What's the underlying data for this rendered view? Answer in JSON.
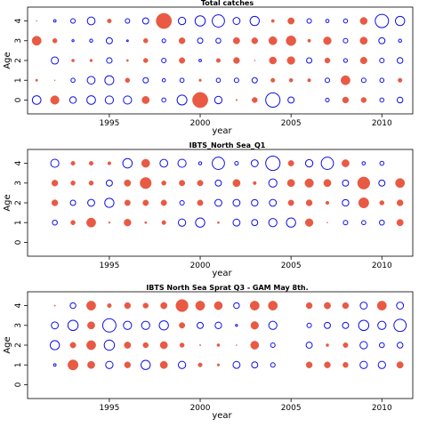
{
  "colors": {
    "positive": "#e85a44",
    "negative": "#1010e8"
  },
  "chart_data": [
    {
      "type": "scatter",
      "title": "Total catches",
      "xlabel": "year",
      "ylabel": "Age",
      "xlim": [
        1990.5,
        2011.7
      ],
      "ylim": [
        -0.7,
        4.7
      ],
      "xticks": [
        1995,
        2000,
        2005,
        2010
      ],
      "yticks": [
        0,
        1,
        2,
        3,
        4
      ],
      "grid": false,
      "encoding": "bubble: filled red = positive residual, open blue = negative residual, value = bubble radius in residual units",
      "points": [
        [
          1991,
          4,
          0.3
        ],
        [
          1992,
          4,
          -1.2
        ],
        [
          1993,
          4,
          -2.2
        ],
        [
          1994,
          4,
          -3.8
        ],
        [
          1995,
          4,
          2.0
        ],
        [
          1996,
          4,
          -2.2
        ],
        [
          1997,
          4,
          -3.0
        ],
        [
          1998,
          4,
          7.5
        ],
        [
          1999,
          4,
          -3.6
        ],
        [
          2000,
          4,
          -5.0
        ],
        [
          2001,
          4,
          -6.0
        ],
        [
          2002,
          4,
          -3.4
        ],
        [
          2003,
          4,
          -4.5
        ],
        [
          2004,
          4,
          1.5
        ],
        [
          2005,
          4,
          3.2
        ],
        [
          2006,
          4,
          -2.2
        ],
        [
          2007,
          4,
          -1.6
        ],
        [
          2008,
          4,
          -2.0
        ],
        [
          2009,
          4,
          3.5
        ],
        [
          2010,
          4,
          -6.5
        ],
        [
          2011,
          4,
          -4.5
        ],
        [
          1991,
          3,
          4.5
        ],
        [
          1992,
          3,
          2.2
        ],
        [
          1993,
          3,
          -1.0
        ],
        [
          1994,
          3,
          -1.5
        ],
        [
          1995,
          3,
          -3.0
        ],
        [
          1996,
          3,
          -0.8
        ],
        [
          1997,
          3,
          2.2
        ],
        [
          1998,
          3,
          -1.8
        ],
        [
          1999,
          3,
          3.0
        ],
        [
          2000,
          3,
          -2.6
        ],
        [
          2001,
          3,
          -2.4
        ],
        [
          2002,
          3,
          3.2
        ],
        [
          2003,
          3,
          3.0
        ],
        [
          2004,
          3,
          4.0
        ],
        [
          2005,
          3,
          4.8
        ],
        [
          2006,
          3,
          1.5
        ],
        [
          2007,
          3,
          3.8
        ],
        [
          2008,
          3,
          -2.2
        ],
        [
          2009,
          3,
          3.6
        ],
        [
          2010,
          3,
          -3.0
        ],
        [
          2011,
          3,
          -1.5
        ],
        [
          1992,
          2,
          -3.5
        ],
        [
          1993,
          2,
          1.4
        ],
        [
          1994,
          2,
          1.3
        ],
        [
          1995,
          2,
          -2.7
        ],
        [
          1996,
          2,
          1.0
        ],
        [
          1997,
          2,
          2.2
        ],
        [
          1998,
          2,
          -2.2
        ],
        [
          1999,
          2,
          2.8
        ],
        [
          2000,
          2,
          -1.2
        ],
        [
          2001,
          2,
          2.0
        ],
        [
          2002,
          2,
          3.0
        ],
        [
          2003,
          2,
          0.5
        ],
        [
          2004,
          2,
          3.5
        ],
        [
          2005,
          2,
          3.8
        ],
        [
          2006,
          2,
          -2.6
        ],
        [
          2007,
          2,
          2.6
        ],
        [
          2008,
          2,
          -1.8
        ],
        [
          2009,
          2,
          3.3
        ],
        [
          2010,
          2,
          -2.2
        ],
        [
          2011,
          2,
          -2.8
        ],
        [
          1991,
          1,
          1.1
        ],
        [
          1992,
          1,
          0.3
        ],
        [
          1993,
          1,
          -2.0
        ],
        [
          1994,
          1,
          -3.8
        ],
        [
          1995,
          1,
          -4.4
        ],
        [
          1996,
          1,
          2.2
        ],
        [
          1997,
          1,
          -2.6
        ],
        [
          1998,
          1,
          -1.6
        ],
        [
          1999,
          1,
          -2.0
        ],
        [
          2000,
          1,
          1.2
        ],
        [
          2001,
          1,
          -2.0
        ],
        [
          2002,
          1,
          -2.2
        ],
        [
          2003,
          1,
          -2.6
        ],
        [
          2004,
          1,
          2.0
        ],
        [
          2005,
          1,
          1.8
        ],
        [
          2006,
          1,
          1.6
        ],
        [
          2007,
          1,
          -2.2
        ],
        [
          2008,
          1,
          4.5
        ],
        [
          2009,
          1,
          -2.2
        ],
        [
          2010,
          1,
          -2.0
        ],
        [
          2011,
          1,
          2.0
        ],
        [
          1991,
          0,
          -4.2
        ],
        [
          1992,
          0,
          4.2
        ],
        [
          1993,
          0,
          -3.2
        ],
        [
          1994,
          0,
          -4.2
        ],
        [
          1995,
          0,
          -4.0
        ],
        [
          1996,
          0,
          -4.0
        ],
        [
          1997,
          0,
          3.6
        ],
        [
          1998,
          0,
          -2.0
        ],
        [
          1999,
          0,
          -4.8
        ],
        [
          2000,
          0,
          7.5
        ],
        [
          2001,
          0,
          -3.6
        ],
        [
          2002,
          0,
          0.7
        ],
        [
          2003,
          0,
          2.6
        ],
        [
          2004,
          0,
          -7.0
        ],
        [
          2005,
          0,
          -3.0
        ],
        [
          2007,
          0,
          -1.8
        ],
        [
          2008,
          0,
          3.0
        ],
        [
          2009,
          0,
          2.6
        ],
        [
          2010,
          0,
          -2.0
        ],
        [
          2011,
          0,
          -2.8
        ]
      ]
    },
    {
      "type": "scatter",
      "title": "IBTS_North Sea_Q1",
      "xlabel": "year",
      "ylabel": "Age",
      "xlim": [
        1990.5,
        2011.7
      ],
      "ylim": [
        -0.7,
        4.7
      ],
      "xticks": [
        1995,
        2000,
        2005,
        2010
      ],
      "yticks": [
        0,
        1,
        2,
        3,
        4
      ],
      "grid": false,
      "encoding": "bubble: filled red = positive residual, open blue = negative residual, value = bubble radius in residual units",
      "points": [
        [
          1992,
          4,
          -4.0
        ],
        [
          1993,
          4,
          2.0
        ],
        [
          1994,
          4,
          2.0
        ],
        [
          1995,
          4,
          1.6
        ],
        [
          1996,
          4,
          -4.6
        ],
        [
          1997,
          4,
          4.0
        ],
        [
          1998,
          4,
          -3.8
        ],
        [
          1999,
          4,
          -4.0
        ],
        [
          2000,
          4,
          -1.5
        ],
        [
          2001,
          4,
          -6.0
        ],
        [
          2002,
          4,
          -1.8
        ],
        [
          2003,
          4,
          -3.4
        ],
        [
          2004,
          4,
          -7.0
        ],
        [
          2005,
          4,
          2.8
        ],
        [
          2006,
          4,
          -3.6
        ],
        [
          2007,
          4,
          -6.0
        ],
        [
          2008,
          4,
          3.6
        ],
        [
          2009,
          4,
          -1.6
        ],
        [
          2010,
          4,
          -2.0
        ],
        [
          1992,
          3,
          3.0
        ],
        [
          1993,
          3,
          2.2
        ],
        [
          1994,
          3,
          2.2
        ],
        [
          1995,
          3,
          -3.0
        ],
        [
          1996,
          3,
          3.2
        ],
        [
          1997,
          3,
          5.5
        ],
        [
          1998,
          3,
          2.2
        ],
        [
          1999,
          3,
          2.8
        ],
        [
          2000,
          3,
          2.8
        ],
        [
          2001,
          3,
          -3.0
        ],
        [
          2002,
          3,
          3.6
        ],
        [
          2003,
          3,
          1.6
        ],
        [
          2004,
          3,
          -4.0
        ],
        [
          2005,
          3,
          3.6
        ],
        [
          2006,
          3,
          4.2
        ],
        [
          2007,
          3,
          3.6
        ],
        [
          2008,
          3,
          -3.0
        ],
        [
          2009,
          3,
          6.0
        ],
        [
          2010,
          3,
          -3.0
        ],
        [
          2011,
          3,
          4.5
        ],
        [
          1992,
          2,
          3.0
        ],
        [
          1993,
          2,
          -2.6
        ],
        [
          1994,
          2,
          -3.4
        ],
        [
          1995,
          2,
          -4.5
        ],
        [
          1996,
          2,
          2.8
        ],
        [
          1997,
          2,
          2.8
        ],
        [
          1998,
          2,
          2.8
        ],
        [
          1999,
          2,
          -2.2
        ],
        [
          2000,
          2,
          2.8
        ],
        [
          2001,
          2,
          -3.4
        ],
        [
          2002,
          2,
          -3.4
        ],
        [
          2003,
          2,
          -3.2
        ],
        [
          2004,
          2,
          -3.4
        ],
        [
          2005,
          2,
          2.8
        ],
        [
          2006,
          2,
          3.0
        ],
        [
          2007,
          2,
          1.6
        ],
        [
          2008,
          2,
          -3.2
        ],
        [
          2009,
          2,
          5.0
        ],
        [
          2010,
          2,
          2.2
        ],
        [
          2011,
          2,
          3.0
        ],
        [
          1992,
          1,
          -2.4
        ],
        [
          1993,
          1,
          2.2
        ],
        [
          1994,
          1,
          4.5
        ],
        [
          1995,
          1,
          0.8
        ],
        [
          1996,
          1,
          3.4
        ],
        [
          1997,
          1,
          1.0
        ],
        [
          1998,
          1,
          2.0
        ],
        [
          1999,
          1,
          -3.6
        ],
        [
          2000,
          1,
          -4.5
        ],
        [
          2001,
          1,
          1.0
        ],
        [
          2002,
          1,
          -3.4
        ],
        [
          2003,
          1,
          -3.0
        ],
        [
          2004,
          1,
          -4.0
        ],
        [
          2005,
          1,
          -4.5
        ],
        [
          2006,
          1,
          3.8
        ],
        [
          2007,
          1,
          0.5
        ],
        [
          2008,
          1,
          -2.2
        ],
        [
          2009,
          1,
          -2.0
        ],
        [
          2010,
          1,
          -2.4
        ],
        [
          2011,
          1,
          3.2
        ]
      ]
    },
    {
      "type": "scatter",
      "title": "IBTS North Sea Sprat Q3 - GAM May 8th.",
      "xlabel": "year",
      "ylabel": "Age",
      "xlim": [
        1990.5,
        2011.7
      ],
      "ylim": [
        -0.7,
        4.7
      ],
      "xticks": [
        1995,
        2000,
        2005,
        2010
      ],
      "yticks": [
        0,
        1,
        2,
        3,
        4
      ],
      "grid": false,
      "encoding": "bubble: filled red = positive residual, open blue = negative residual, value = bubble radius in residual units",
      "points": [
        [
          1992,
          4,
          0.6
        ],
        [
          1993,
          4,
          -2.8
        ],
        [
          1994,
          4,
          4.5
        ],
        [
          1995,
          4,
          2.0
        ],
        [
          1996,
          4,
          3.0
        ],
        [
          1997,
          4,
          2.6
        ],
        [
          1998,
          4,
          3.2
        ],
        [
          1999,
          4,
          6.0
        ],
        [
          2000,
          4,
          4.5
        ],
        [
          2001,
          4,
          4.0
        ],
        [
          2002,
          4,
          -2.8
        ],
        [
          2003,
          4,
          4.5
        ],
        [
          2004,
          4,
          4.5
        ],
        [
          2006,
          4,
          3.0
        ],
        [
          2007,
          4,
          3.2
        ],
        [
          2008,
          4,
          3.0
        ],
        [
          2009,
          4,
          -3.4
        ],
        [
          2010,
          4,
          4.5
        ],
        [
          2011,
          4,
          -3.4
        ],
        [
          1992,
          3,
          -3.4
        ],
        [
          1993,
          3,
          -5.0
        ],
        [
          1994,
          3,
          3.6
        ],
        [
          1995,
          3,
          -6.5
        ],
        [
          1996,
          3,
          -4.0
        ],
        [
          1997,
          3,
          -4.0
        ],
        [
          1998,
          3,
          -4.5
        ],
        [
          1999,
          3,
          2.8
        ],
        [
          2000,
          3,
          -3.0
        ],
        [
          2001,
          3,
          -3.2
        ],
        [
          2002,
          3,
          -1.0
        ],
        [
          2003,
          3,
          3.8
        ],
        [
          2004,
          3,
          -4.0
        ],
        [
          2006,
          3,
          -2.2
        ],
        [
          2007,
          3,
          -3.0
        ],
        [
          2008,
          3,
          -3.0
        ],
        [
          2009,
          3,
          -5.0
        ],
        [
          2010,
          3,
          -4.0
        ],
        [
          2011,
          3,
          -6.0
        ],
        [
          1992,
          2,
          -4.5
        ],
        [
          1993,
          2,
          2.8
        ],
        [
          1994,
          2,
          4.5
        ],
        [
          1995,
          2,
          -5.0
        ],
        [
          1996,
          2,
          3.2
        ],
        [
          1997,
          2,
          2.6
        ],
        [
          1998,
          2,
          3.6
        ],
        [
          1999,
          2,
          2.2
        ],
        [
          2000,
          2,
          0.6
        ],
        [
          2001,
          2,
          1.4
        ],
        [
          2002,
          2,
          0.5
        ],
        [
          2003,
          2,
          4.0
        ],
        [
          2004,
          2,
          -2.2
        ],
        [
          2006,
          2,
          -3.0
        ],
        [
          2007,
          2,
          1.4
        ],
        [
          2008,
          2,
          2.4
        ],
        [
          2009,
          2,
          -3.6
        ],
        [
          2010,
          2,
          -2.4
        ],
        [
          2011,
          2,
          -2.8
        ],
        [
          1992,
          1,
          -1.2
        ],
        [
          1993,
          1,
          5.0
        ],
        [
          1994,
          1,
          3.6
        ],
        [
          1995,
          1,
          -3.6
        ],
        [
          1996,
          1,
          3.0
        ],
        [
          1997,
          1,
          -4.5
        ],
        [
          1998,
          1,
          3.6
        ],
        [
          1999,
          1,
          -3.6
        ],
        [
          2000,
          1,
          2.0
        ],
        [
          2001,
          1,
          1.2
        ],
        [
          2002,
          1,
          -3.4
        ],
        [
          2003,
          1,
          -3.0
        ],
        [
          2004,
          1,
          -2.2
        ],
        [
          2006,
          1,
          3.0
        ],
        [
          2007,
          1,
          3.0
        ],
        [
          2008,
          1,
          2.6
        ],
        [
          2009,
          1,
          -3.6
        ],
        [
          2010,
          1,
          -3.6
        ],
        [
          2011,
          1,
          3.2
        ]
      ]
    }
  ]
}
